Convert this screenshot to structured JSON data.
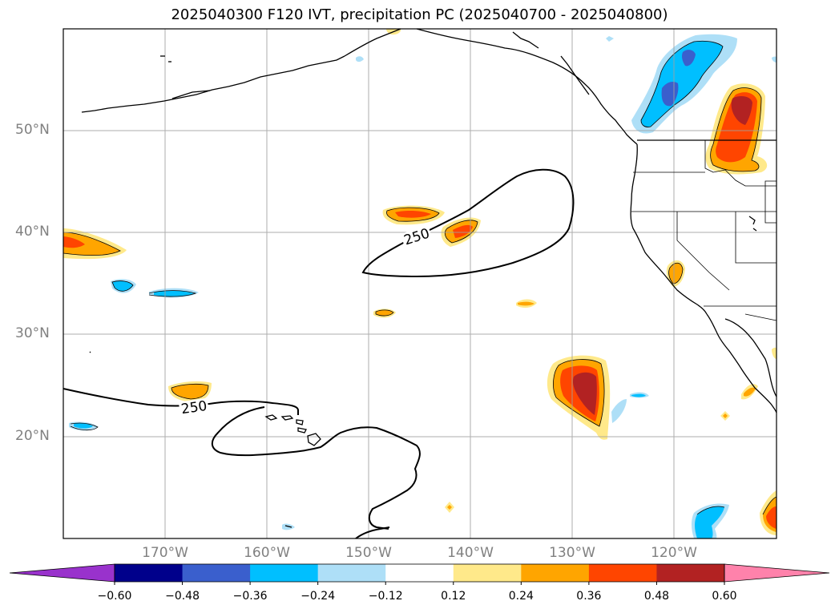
{
  "title": "2025040300 F120 IVT, precipitation PC (2025040700 - 2025040800)",
  "map": {
    "lat_labels": [
      "50°N",
      "40°N",
      "30°N",
      "20°N"
    ],
    "lon_labels": [
      "170°W",
      "160°W",
      "150°W",
      "140°W",
      "130°W",
      "120°W"
    ],
    "contour_labels": [
      "250",
      "250"
    ],
    "colors": {
      "land_line": "#000000",
      "gridline": "#a0a0a0",
      "pos_low": "#ffe98a",
      "pos_mid": "#ffa500",
      "pos_high": "#ff4500",
      "pos_top": "#b22222",
      "neg_low": "#aedff7",
      "neg_mid": "#00bfff",
      "neg_high": "#3a5fcd"
    }
  },
  "colorbar": {
    "ticks": [
      "−0.60",
      "−0.48",
      "−0.36",
      "−0.24",
      "−0.12",
      "0.12",
      "0.24",
      "0.36",
      "0.48",
      "0.60"
    ],
    "colors": [
      "#9932cc",
      "#00008b",
      "#3a5fcd",
      "#00bfff",
      "#aedff7",
      "#ffffff",
      "#ffe98a",
      "#ffa500",
      "#ff4500",
      "#b22222",
      "#ff82ab"
    ]
  }
}
